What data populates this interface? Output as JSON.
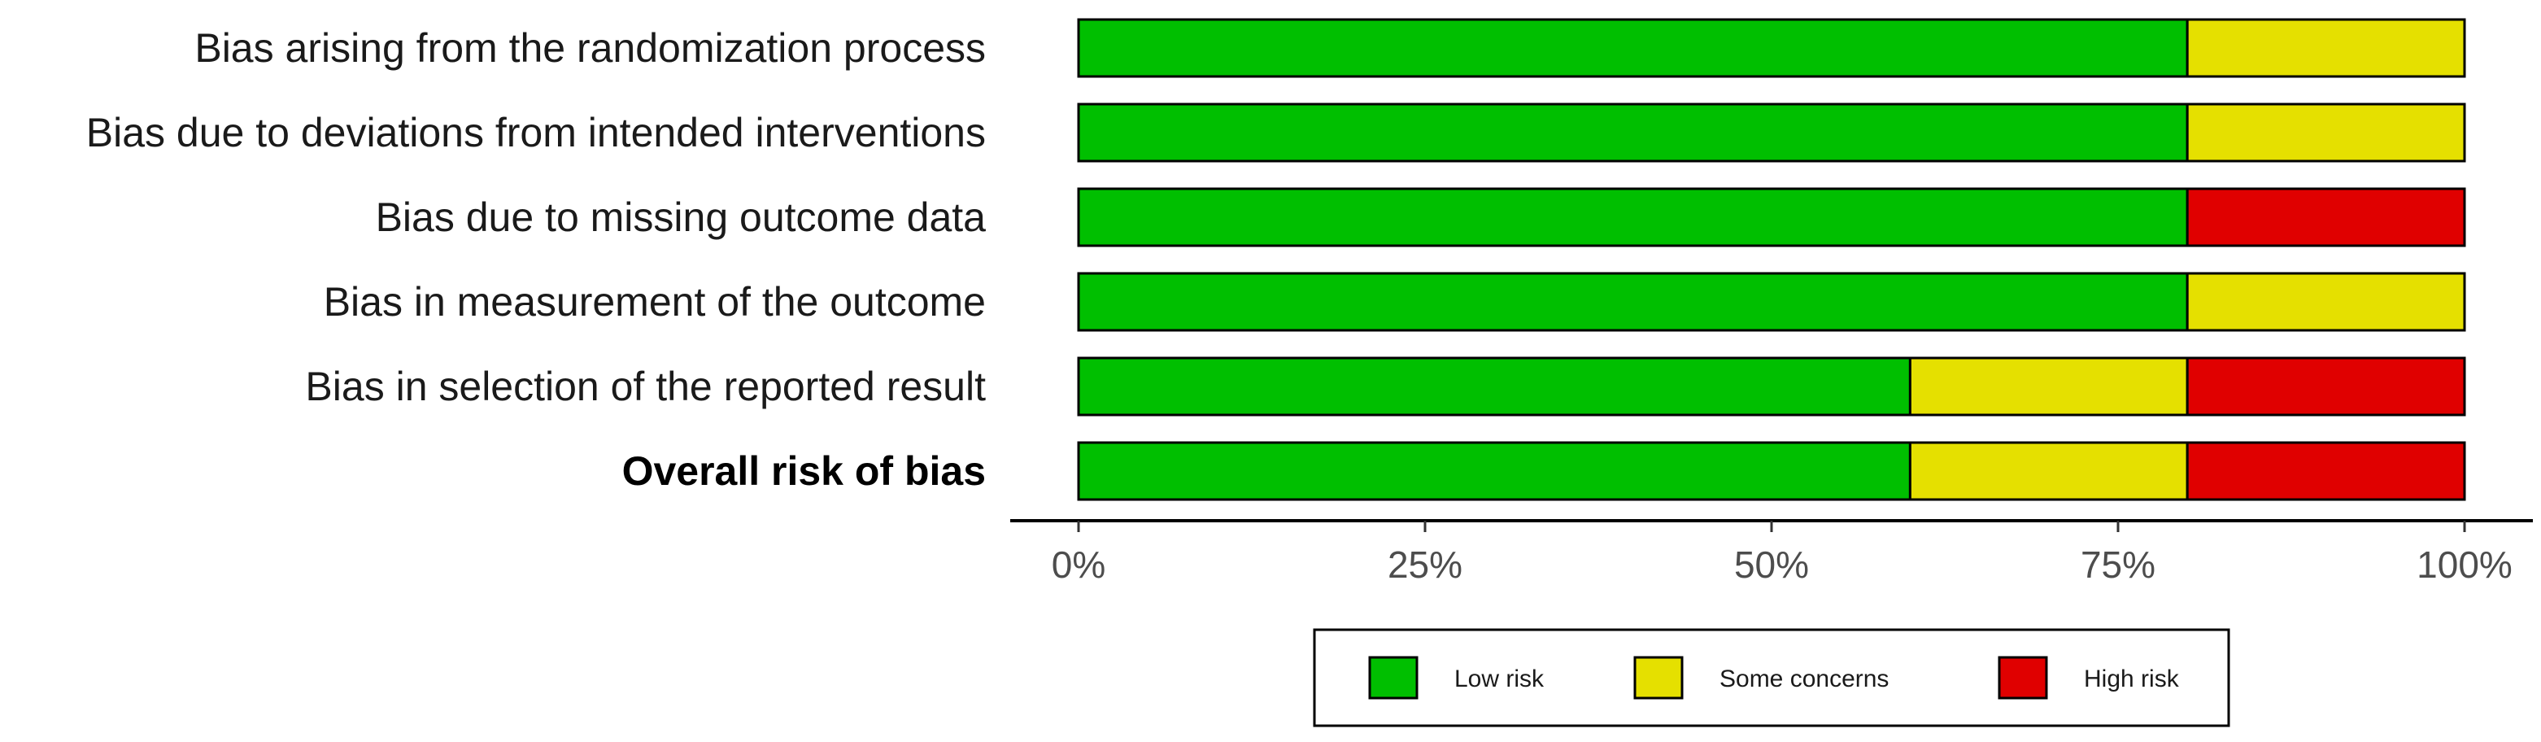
{
  "chart_data": {
    "type": "bar",
    "orientation": "horizontal",
    "stacked": true,
    "normalized": true,
    "categories": [
      "Bias arising from the randomization process",
      "Bias due to deviations from intended interventions",
      "Bias due to missing outcome data",
      "Bias in measurement of the outcome",
      "Bias in selection of the reported result",
      "Overall risk of bias"
    ],
    "bold_categories": [
      "Overall risk of bias"
    ],
    "series": [
      {
        "name": "Low risk",
        "color": "#00bf00",
        "values": [
          80,
          80,
          80,
          80,
          60,
          60
        ]
      },
      {
        "name": "Some concerns",
        "color": "#e5e000",
        "values": [
          20,
          20,
          0,
          20,
          20,
          20
        ]
      },
      {
        "name": "High risk",
        "color": "#e00000",
        "values": [
          0,
          0,
          20,
          0,
          20,
          20
        ]
      }
    ],
    "xlim": [
      0,
      100
    ],
    "x_ticks": [
      0,
      25,
      50,
      75,
      100
    ],
    "x_tick_labels": [
      "0%",
      "25%",
      "50%",
      "75%",
      "100%"
    ],
    "xlabel": "",
    "ylabel": "",
    "title": "",
    "grid": false,
    "legend_position": "bottom"
  }
}
